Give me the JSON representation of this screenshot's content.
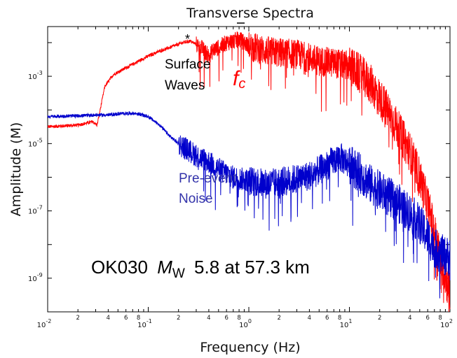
{
  "chart_data": {
    "type": "line",
    "title": "Transverse Spectra",
    "xlabel": "Frequency (Hz)",
    "ylabel": "Amplitude (M)",
    "x_scale": "log",
    "y_scale": "log",
    "xlim": [
      0.01,
      100
    ],
    "ylim": [
      1e-10,
      0.03
    ],
    "x_major_ticks": [
      {
        "value": 0.01,
        "base": "10",
        "exp": "-2"
      },
      {
        "value": 0.1,
        "base": "10",
        "exp": "-1"
      },
      {
        "value": 1,
        "base": "10",
        "exp": "0"
      },
      {
        "value": 10,
        "base": "10",
        "exp": "1"
      },
      {
        "value": 100,
        "base": "10",
        "exp": "2"
      }
    ],
    "x_minor_labels": [
      "2",
      "4",
      "6",
      "8"
    ],
    "y_major_ticks": [
      {
        "value": 0.001,
        "base": "10",
        "exp": "-3"
      },
      {
        "value": 1e-05,
        "base": "10",
        "exp": "-5"
      },
      {
        "value": 1e-07,
        "base": "10",
        "exp": "-7"
      },
      {
        "value": 1e-09,
        "base": "10",
        "exp": "-9"
      }
    ],
    "grid": false,
    "series": [
      {
        "name": "Surface Waves",
        "color": "#ff0000",
        "x": [
          0.01,
          0.02,
          0.028,
          0.031,
          0.033,
          0.037,
          0.045,
          0.06,
          0.08,
          0.1,
          0.13,
          0.18,
          0.22,
          0.26,
          0.3,
          0.35,
          0.4,
          0.45,
          0.5,
          0.6,
          0.7,
          0.8,
          0.9,
          1.0,
          1.5,
          2,
          3,
          4,
          5,
          7,
          10,
          13,
          17,
          20,
          25,
          30,
          40,
          50,
          60,
          70,
          80,
          90,
          100
        ],
        "y": [
          3.16e-05,
          3.55e-05,
          4.47e-05,
          3.55e-05,
          8.91e-05,
          0.000501,
          0.00112,
          0.00178,
          0.00282,
          0.00398,
          0.00562,
          0.00794,
          0.01,
          0.0112,
          0.0089,
          0.0063,
          0.00398,
          0.0063,
          0.00708,
          0.01,
          0.0112,
          0.0126,
          0.01,
          0.00794,
          0.00562,
          0.00501,
          0.00447,
          0.00355,
          0.00282,
          0.00251,
          0.002,
          0.00112,
          0.000501,
          0.000224,
          7.94e-05,
          2.82e-05,
          5.62e-06,
          1e-06,
          1.58e-07,
          2.51e-08,
          3.98e-09,
          1.12e-09,
          3.16e-10
        ]
      },
      {
        "name": "Pre-event Noise",
        "color": "#0000cc",
        "x": [
          0.01,
          0.02,
          0.03,
          0.04,
          0.05,
          0.06,
          0.07,
          0.08,
          0.1,
          0.13,
          0.16,
          0.2,
          0.25,
          0.3,
          0.4,
          0.5,
          0.7,
          1.0,
          1.5,
          2,
          3,
          4,
          5,
          6,
          7,
          8,
          10,
          13,
          16,
          20,
          25,
          30,
          40,
          50,
          60,
          70,
          80,
          90,
          100
        ],
        "y": [
          6.31e-05,
          6.68e-05,
          7.08e-05,
          7.08e-05,
          7.59e-05,
          7.94e-05,
          7.94e-05,
          7.59e-05,
          6.31e-05,
          3.55e-05,
          1.78e-05,
          1e-05,
          6.31e-06,
          4.47e-06,
          2.82e-06,
          1.78e-06,
          1e-06,
          7.94e-07,
          6.31e-07,
          7.08e-07,
          8.91e-07,
          1.12e-06,
          1.58e-06,
          2.24e-06,
          3.16e-06,
          3.98e-06,
          2.51e-06,
          1.26e-06,
          6.31e-07,
          3.98e-07,
          2.51e-07,
          1.78e-07,
          8.91e-08,
          3.98e-08,
          1.78e-08,
          7.94e-09,
          5.62e-09,
          4.47e-09,
          4.47e-09
        ]
      }
    ],
    "annotations": {
      "surface_waves_line1": "Surface",
      "surface_waves_line2": "Waves",
      "star": "*",
      "fc_main": "f",
      "fc_sub": "c",
      "noise_line1": "Pre-event",
      "noise_line2": "Noise",
      "station": "OK030",
      "mw_main": "M",
      "mw_sub": "W",
      "magnitude_text": "5.8 at 57.3 km"
    }
  }
}
